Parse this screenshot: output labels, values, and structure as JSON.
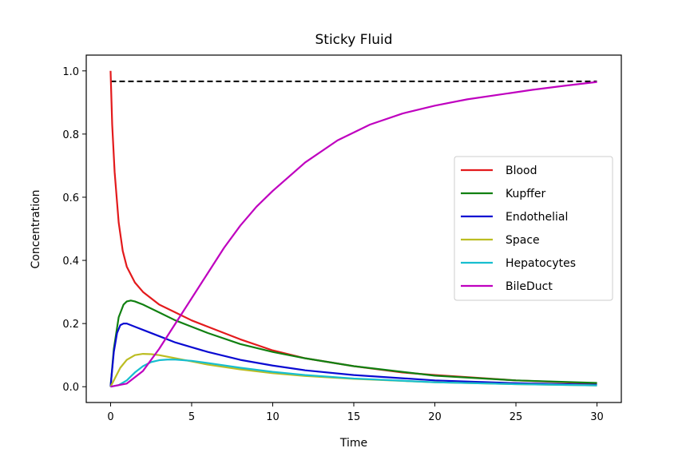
{
  "chart_data": {
    "type": "line",
    "title": "Sticky Fluid",
    "xlabel": "Time",
    "ylabel": "Concentration",
    "xlim": [
      -1.5,
      31.5
    ],
    "ylim": [
      -0.05,
      1.05
    ],
    "xticks": [
      0,
      5,
      10,
      15,
      20,
      25,
      30
    ],
    "yticks": [
      0.0,
      0.2,
      0.4,
      0.6,
      0.8,
      1.0
    ],
    "xtick_labels": [
      "0",
      "5",
      "10",
      "15",
      "20",
      "25",
      "30"
    ],
    "ytick_labels": [
      "0.0",
      "0.2",
      "0.4",
      "0.6",
      "0.8",
      "1.0"
    ],
    "grid": false,
    "legend_position": "center-right",
    "reference_line": {
      "style": "dashed",
      "color": "#000000",
      "y": 0.967,
      "x": [
        0,
        30
      ]
    },
    "series": [
      {
        "name": "Blood",
        "color": "#e31a1c",
        "x": [
          0,
          0.1,
          0.25,
          0.5,
          0.75,
          1,
          1.5,
          2,
          3,
          4,
          5,
          6,
          8,
          10,
          12,
          15,
          18,
          20,
          25,
          30
        ],
        "y": [
          1.0,
          0.83,
          0.68,
          0.52,
          0.43,
          0.38,
          0.33,
          0.3,
          0.26,
          0.235,
          0.21,
          0.19,
          0.15,
          0.115,
          0.09,
          0.065,
          0.045,
          0.037,
          0.02,
          0.01
        ]
      },
      {
        "name": "Kupffer",
        "color": "#118011",
        "x": [
          0,
          0.2,
          0.5,
          0.8,
          1,
          1.25,
          1.5,
          2,
          3,
          4,
          5,
          6,
          8,
          10,
          12,
          15,
          20,
          25,
          30
        ],
        "y": [
          0.0,
          0.12,
          0.22,
          0.26,
          0.27,
          0.273,
          0.27,
          0.26,
          0.235,
          0.21,
          0.19,
          0.17,
          0.135,
          0.11,
          0.09,
          0.065,
          0.035,
          0.02,
          0.012
        ]
      },
      {
        "name": "Endothelial",
        "color": "#0a0ad2",
        "x": [
          0,
          0.2,
          0.4,
          0.6,
          0.8,
          1,
          1.5,
          2,
          3,
          4,
          5,
          6,
          8,
          10,
          12,
          15,
          20,
          25,
          30
        ],
        "y": [
          0.0,
          0.11,
          0.17,
          0.195,
          0.2,
          0.2,
          0.19,
          0.18,
          0.16,
          0.14,
          0.125,
          0.11,
          0.085,
          0.067,
          0.052,
          0.037,
          0.02,
          0.011,
          0.006
        ]
      },
      {
        "name": "Space",
        "color": "#bcbd22",
        "x": [
          0,
          0.3,
          0.6,
          1,
          1.5,
          2,
          2.5,
          3,
          4,
          5,
          6,
          8,
          10,
          12,
          15,
          20,
          25,
          30
        ],
        "y": [
          0.0,
          0.03,
          0.06,
          0.085,
          0.1,
          0.104,
          0.103,
          0.1,
          0.09,
          0.08,
          0.07,
          0.055,
          0.043,
          0.034,
          0.025,
          0.014,
          0.008,
          0.004
        ]
      },
      {
        "name": "Hepatocytes",
        "color": "#17becf",
        "x": [
          0,
          0.5,
          1,
          1.5,
          2,
          2.5,
          3,
          3.5,
          4,
          5,
          6,
          8,
          10,
          12,
          15,
          20,
          25,
          30
        ],
        "y": [
          0.0,
          0.005,
          0.02,
          0.045,
          0.065,
          0.078,
          0.084,
          0.086,
          0.086,
          0.082,
          0.075,
          0.06,
          0.047,
          0.037,
          0.026,
          0.014,
          0.008,
          0.004
        ]
      },
      {
        "name": "BileDuct",
        "color": "#bf00bf",
        "x": [
          0,
          1,
          2,
          3,
          4,
          5,
          6,
          7,
          8,
          9,
          10,
          12,
          14,
          16,
          18,
          20,
          22,
          24,
          26,
          28,
          30
        ],
        "y": [
          0.0,
          0.01,
          0.05,
          0.12,
          0.2,
          0.28,
          0.36,
          0.44,
          0.51,
          0.57,
          0.62,
          0.71,
          0.78,
          0.83,
          0.865,
          0.89,
          0.91,
          0.925,
          0.94,
          0.953,
          0.965
        ]
      }
    ]
  }
}
